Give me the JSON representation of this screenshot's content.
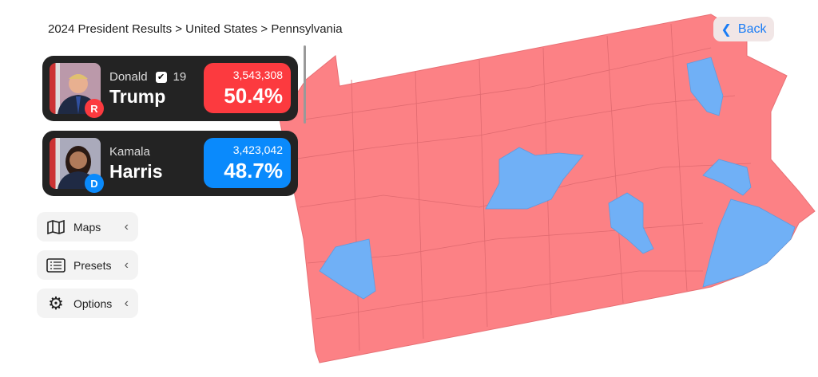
{
  "breadcrumb": "2024 President Results > United States > Pennsylvania",
  "back_label": "Back",
  "candidates": [
    {
      "first": "Donald",
      "last": "Trump",
      "party": "R",
      "votes": "3,543,308",
      "pct": "50.4%",
      "electoral_votes": "19",
      "winner": true,
      "color": "#fc3a3f"
    },
    {
      "first": "Kamala",
      "last": "Harris",
      "party": "D",
      "votes": "3,423,042",
      "pct": "48.7%",
      "color": "#0a8afc"
    }
  ],
  "menu": [
    {
      "label": "Maps",
      "icon": "map-icon"
    },
    {
      "label": "Presets",
      "icon": "list-icon"
    },
    {
      "label": "Options",
      "icon": "gear-icon"
    }
  ],
  "map_colors": {
    "republican": "#fc8185",
    "democrat": "#70b0f6"
  }
}
